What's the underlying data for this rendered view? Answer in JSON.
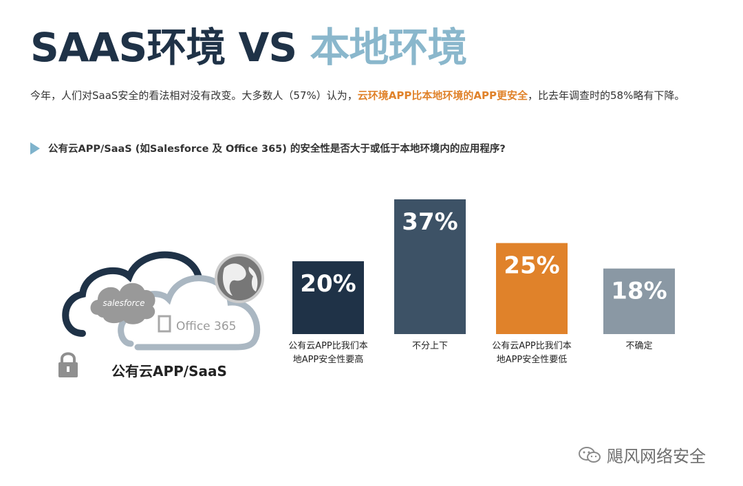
{
  "title": {
    "part1": "SAAS环境 VS ",
    "part2": "本地环境"
  },
  "intro": {
    "before": "今年，人们对SaaS安全的看法相对没有改变。大多数人（57%）认为，",
    "highlight": "云环境APP比本地环境的APP更安全",
    "after": "，比去年调查时的58%略有下降。"
  },
  "question": "公有云APP/SaaS (如Salesforce 及 Office 365) 的安全性是否大于或低于本地环境内的应用程序?",
  "illustration": {
    "salesforce": "salesforce",
    "office": "Office 365",
    "caption": "公有云APP/SaaS",
    "icons": [
      "cloud-icon",
      "globe-icon",
      "lock-icon",
      "office-logo-icon"
    ]
  },
  "chart_data": {
    "type": "bar",
    "categories": [
      [
        "公有云APP比我们本",
        "地APP安全性要高"
      ],
      [
        "不分上下"
      ],
      [
        "公有云APP比我们本",
        "地APP安全性要低"
      ],
      [
        "不确定"
      ]
    ],
    "values": [
      20,
      37,
      25,
      18
    ],
    "data_labels": [
      "20%",
      "37%",
      "25%",
      "18%"
    ],
    "colors": [
      "#1f3247",
      "#3d5266",
      "#e0822a",
      "#8a98a4"
    ],
    "unit": "%",
    "ylim": [
      0,
      37
    ],
    "grid": false,
    "legend": "none"
  },
  "watermark": "飓风网络安全"
}
